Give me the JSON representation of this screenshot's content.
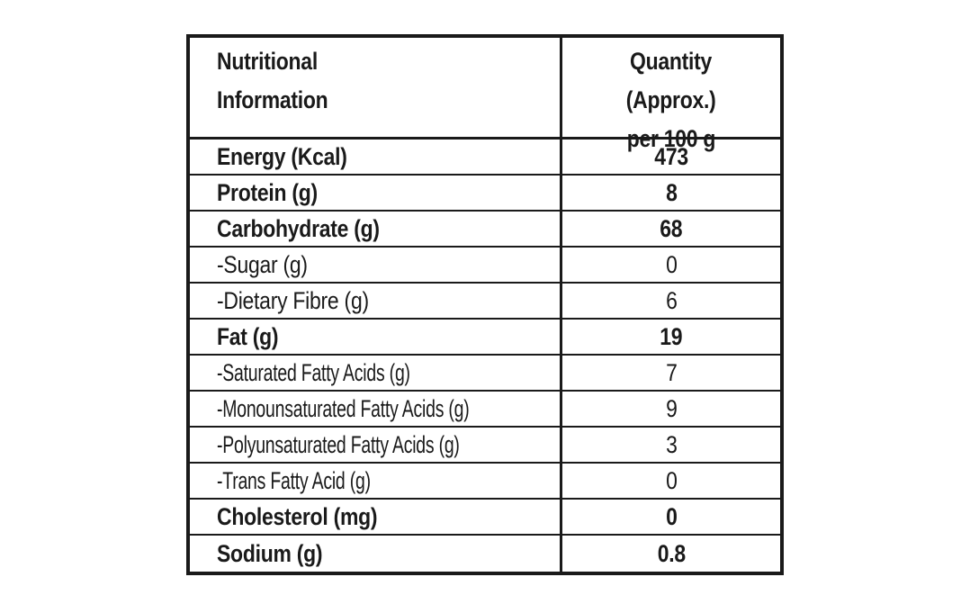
{
  "colors": {
    "background": "#ffffff",
    "border": "#1a1a1a",
    "text": "#1a1a1a"
  },
  "table": {
    "header": {
      "column1_lines": [
        "Nutritional",
        "Information"
      ],
      "column2_lines": [
        "Quantity",
        "(Approx.)",
        "per 100 g"
      ]
    },
    "rows": [
      {
        "label": "Energy (Kcal)",
        "value": "473"
      },
      {
        "label": "Protein (g)",
        "value": "8"
      },
      {
        "label": "Carbohydrate (g)",
        "value": "68"
      },
      {
        "label": "-Sugar (g)",
        "value": "0"
      },
      {
        "label": "-Dietary Fibre (g)",
        "value": "6"
      },
      {
        "label": "Fat (g)",
        "value": "19"
      },
      {
        "label": "-Saturated Fatty Acids (g)",
        "value": "7"
      },
      {
        "label": "-Monounsaturated Fatty Acids (g)",
        "value": "9"
      },
      {
        "label": "-Polyunsaturated Fatty Acids (g)",
        "value": "3"
      },
      {
        "label": "-Trans Fatty Acid (g)",
        "value": "0"
      },
      {
        "label": "Cholesterol (mg)",
        "value": "0"
      },
      {
        "label": "Sodium (g)",
        "value": "0.8"
      }
    ]
  }
}
